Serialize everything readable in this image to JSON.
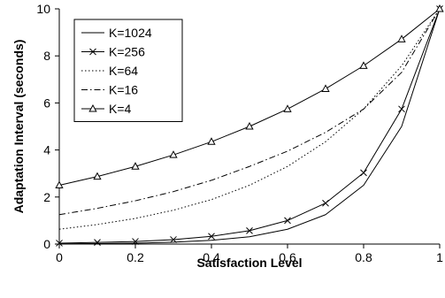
{
  "chart_data": {
    "type": "line",
    "xlabel": "Satisfaction Level",
    "ylabel": "Adaptation Interval (seconds)",
    "xlim": [
      0,
      1
    ],
    "ylim": [
      0,
      10
    ],
    "x_ticks": [
      "0",
      "0.2",
      "0.4",
      "0.6",
      "0.8",
      "1"
    ],
    "y_ticks": [
      "0",
      "2",
      "4",
      "6",
      "8",
      "10"
    ],
    "grid": false,
    "legend_position": "top-left",
    "series": [
      {
        "name": "K=1024",
        "line_style": "solid",
        "marker": "none",
        "x": [
          0,
          0.1,
          0.2,
          0.3,
          0.4,
          0.5,
          0.6,
          0.7,
          0.8,
          0.9,
          1.0
        ],
        "y": [
          0.01,
          0.02,
          0.04,
          0.08,
          0.16,
          0.31,
          0.63,
          1.25,
          2.5,
          5.0,
          10.0
        ]
      },
      {
        "name": "K=256",
        "line_style": "solid",
        "marker": "x",
        "x": [
          0,
          0.1,
          0.2,
          0.3,
          0.4,
          0.5,
          0.6,
          0.7,
          0.8,
          0.9,
          1.0
        ],
        "y": [
          0.04,
          0.07,
          0.11,
          0.19,
          0.33,
          0.57,
          1.0,
          1.74,
          3.03,
          5.74,
          10.0
        ]
      },
      {
        "name": "K=64",
        "line_style": "dotted",
        "marker": "none",
        "x": [
          0,
          0.1,
          0.2,
          0.3,
          0.4,
          0.5,
          0.6,
          0.7,
          0.8,
          0.9,
          1.0
        ],
        "y": [
          0.63,
          0.83,
          1.09,
          1.44,
          1.89,
          2.5,
          3.3,
          4.35,
          5.74,
          7.58,
          10.0
        ]
      },
      {
        "name": "K=16",
        "line_style": "dashdot",
        "marker": "none",
        "x": [
          0,
          0.1,
          0.2,
          0.3,
          0.4,
          0.5,
          0.6,
          0.7,
          0.8,
          0.9,
          1.0
        ],
        "y": [
          1.25,
          1.52,
          1.84,
          2.23,
          2.71,
          3.3,
          3.95,
          4.75,
          5.74,
          7.3,
          10.0
        ]
      },
      {
        "name": "K=4",
        "line_style": "solid",
        "marker": "triangle",
        "x": [
          0,
          0.1,
          0.2,
          0.3,
          0.4,
          0.5,
          0.6,
          0.7,
          0.8,
          0.9,
          1.0
        ],
        "y": [
          2.5,
          2.87,
          3.3,
          3.79,
          4.35,
          5.0,
          5.74,
          6.6,
          7.58,
          8.71,
          10.0
        ]
      }
    ]
  }
}
